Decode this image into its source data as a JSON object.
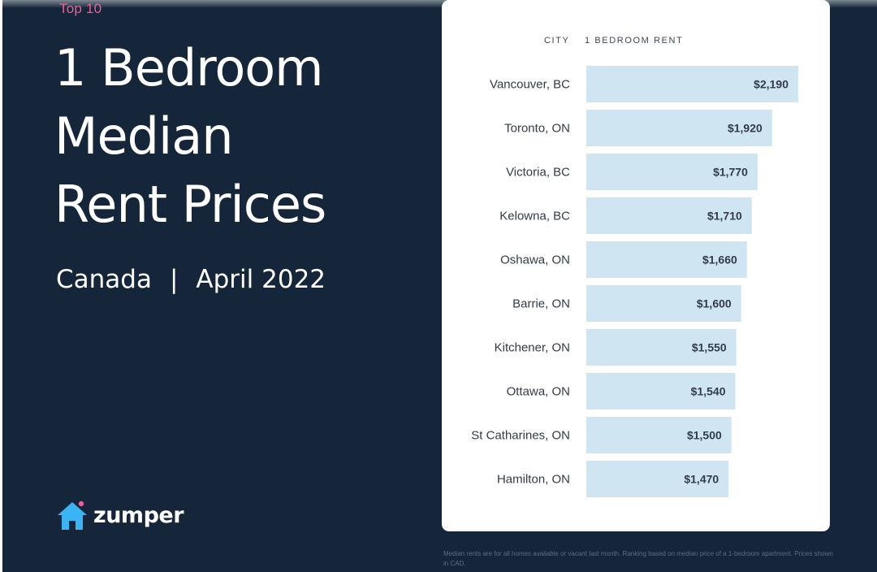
{
  "header": {
    "kicker": "Top 10",
    "title_lines": [
      "1 Bedroom",
      "Median",
      "Rent Prices"
    ],
    "region": "Canada",
    "separator": "|",
    "period": "April 2022"
  },
  "brand": {
    "name": "zumper",
    "icon": "house-icon",
    "icon_color": "#3ab4f2",
    "dot_color": "#f05c9a"
  },
  "table_headers": {
    "city": "CITY",
    "rent": "1 BEDROOM RENT"
  },
  "footnote": "Median rents are for all homes available or vacant last month. Ranking based on median price of a 1-bedroom apartment. Prices shown in CAD.",
  "colors": {
    "background": "#15263a",
    "bar": "#cfe5f2",
    "accent": "#f05c9a"
  },
  "chart_data": {
    "type": "bar",
    "orientation": "horizontal",
    "categories": [
      "Vancouver, BC",
      "Toronto, ON",
      "Victoria, BC",
      "Kelowna, BC",
      "Oshawa, ON",
      "Barrie, ON",
      "Kitchener, ON",
      "Ottawa, ON",
      "St Catharines, ON",
      "Hamilton, ON"
    ],
    "values": [
      2190,
      1920,
      1770,
      1710,
      1660,
      1600,
      1550,
      1540,
      1500,
      1470
    ],
    "value_labels": [
      "$2,190",
      "$1,920",
      "$1,770",
      "$1,710",
      "$1,660",
      "$1,600",
      "$1,550",
      "$1,540",
      "$1,500",
      "$1,470"
    ],
    "grid": false,
    "legend": "none"
  }
}
